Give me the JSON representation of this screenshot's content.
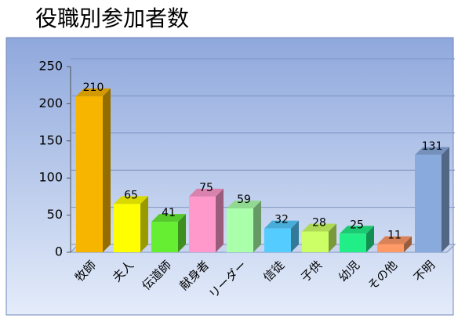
{
  "chart_data": {
    "type": "bar",
    "title": "役職別参加者数",
    "categories": [
      "牧師",
      "夫人",
      "伝道師",
      "献身者",
      "リーダー",
      "信徒",
      "子供",
      "幼児",
      "その他",
      "不明"
    ],
    "values": [
      210,
      65,
      41,
      75,
      59,
      32,
      28,
      25,
      11,
      131
    ],
    "colors": [
      "#f7b500",
      "#ffff00",
      "#66ee33",
      "#ff99cc",
      "#aaffaa",
      "#55ccff",
      "#ccff66",
      "#22ee88",
      "#ff9966",
      "#88aadd"
    ],
    "ylim": [
      0,
      250
    ],
    "yticks": [
      0,
      50,
      100,
      150,
      200,
      250
    ],
    "grid": true
  }
}
